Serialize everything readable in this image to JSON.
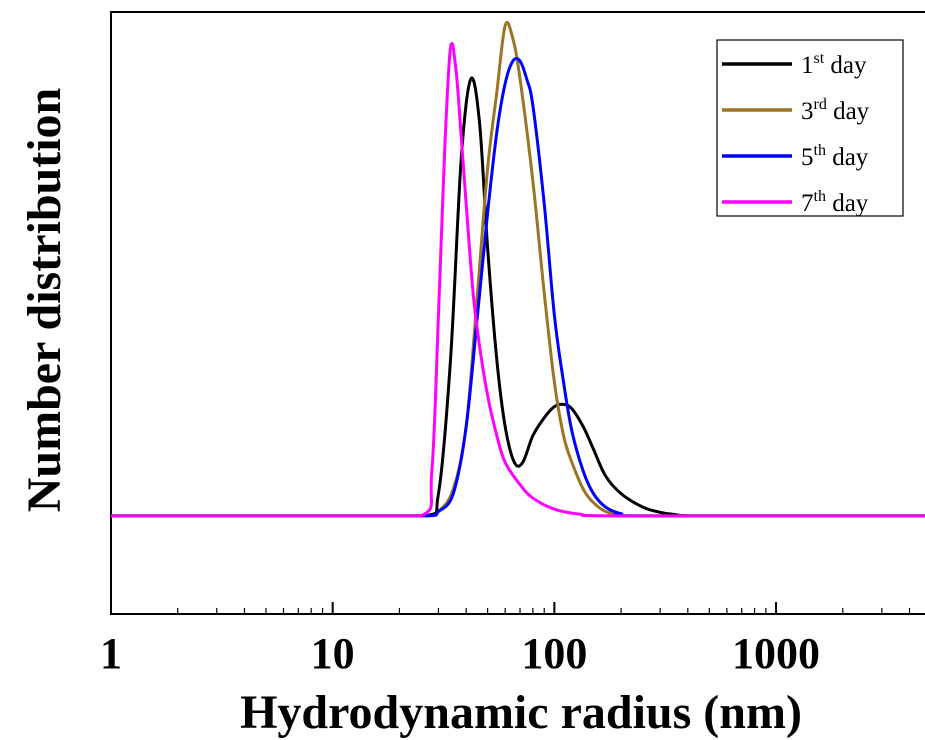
{
  "chart_data": {
    "type": "line",
    "title": "",
    "xlabel": "Hydrodynamic radius (nm)",
    "ylabel": "Number distribution",
    "x_scale": "log",
    "xlim": [
      1,
      5000
    ],
    "ylim": [
      -0.22,
      1.13
    ],
    "x_ticks": [
      1,
      10,
      100,
      1000
    ],
    "x_tick_labels": [
      "1",
      "10",
      "100",
      "1000"
    ],
    "y_ticks_shown": false,
    "grid": false,
    "legend_position": "top-right",
    "series": [
      {
        "name": "day",
        "legend_number": "1",
        "legend_suffix": "st",
        "color": "#000000",
        "x": [
          1,
          10,
          26,
          30,
          34,
          38,
          42,
          46,
          50,
          55,
          60,
          66,
          72,
          80,
          90,
          100,
          110,
          120,
          135,
          150,
          170,
          200,
          250,
          300,
          350,
          420,
          1000,
          5000
        ],
        "y": [
          0,
          0,
          0,
          0.05,
          0.35,
          0.8,
          0.98,
          0.88,
          0.6,
          0.35,
          0.2,
          0.12,
          0.12,
          0.18,
          0.22,
          0.245,
          0.25,
          0.24,
          0.2,
          0.15,
          0.09,
          0.05,
          0.02,
          0.008,
          0.003,
          0,
          0,
          0
        ]
      },
      {
        "name": "day",
        "legend_number": "3",
        "legend_suffix": "rd",
        "color": "#9C7522",
        "x": [
          1,
          10,
          26,
          30,
          35,
          40,
          45,
          50,
          55,
          60,
          65,
          70,
          80,
          90,
          100,
          110,
          120,
          135,
          150,
          170,
          200,
          250,
          5000
        ],
        "y": [
          0,
          0,
          0,
          0.01,
          0.06,
          0.2,
          0.5,
          0.78,
          0.95,
          1.1,
          1.07,
          0.98,
          0.75,
          0.5,
          0.3,
          0.18,
          0.12,
          0.06,
          0.03,
          0.01,
          0.002,
          0,
          0
        ]
      },
      {
        "name": "day",
        "legend_number": "5",
        "legend_suffix": "th",
        "color": "#0000FF",
        "x": [
          1,
          10,
          26,
          30,
          35,
          40,
          45,
          50,
          55,
          60,
          65,
          70,
          75,
          80,
          90,
          100,
          110,
          120,
          135,
          150,
          170,
          200,
          250,
          5000
        ],
        "y": [
          0,
          0,
          0,
          0.01,
          0.05,
          0.2,
          0.45,
          0.68,
          0.86,
          0.97,
          1.02,
          1.02,
          0.98,
          0.92,
          0.7,
          0.45,
          0.3,
          0.19,
          0.1,
          0.05,
          0.02,
          0.005,
          0,
          0
        ]
      },
      {
        "name": "day",
        "legend_number": "7",
        "legend_suffix": "th",
        "color": "#FF00FF",
        "x": [
          1,
          10,
          25,
          28,
          30,
          32,
          34,
          36,
          38,
          40,
          43,
          46,
          50,
          55,
          60,
          70,
          80,
          100,
          130,
          200,
          5000
        ],
        "y": [
          0,
          0,
          0,
          0.1,
          0.45,
          0.82,
          1.05,
          1.0,
          0.85,
          0.7,
          0.5,
          0.38,
          0.27,
          0.18,
          0.12,
          0.07,
          0.04,
          0.015,
          0.004,
          0,
          0
        ]
      }
    ]
  }
}
